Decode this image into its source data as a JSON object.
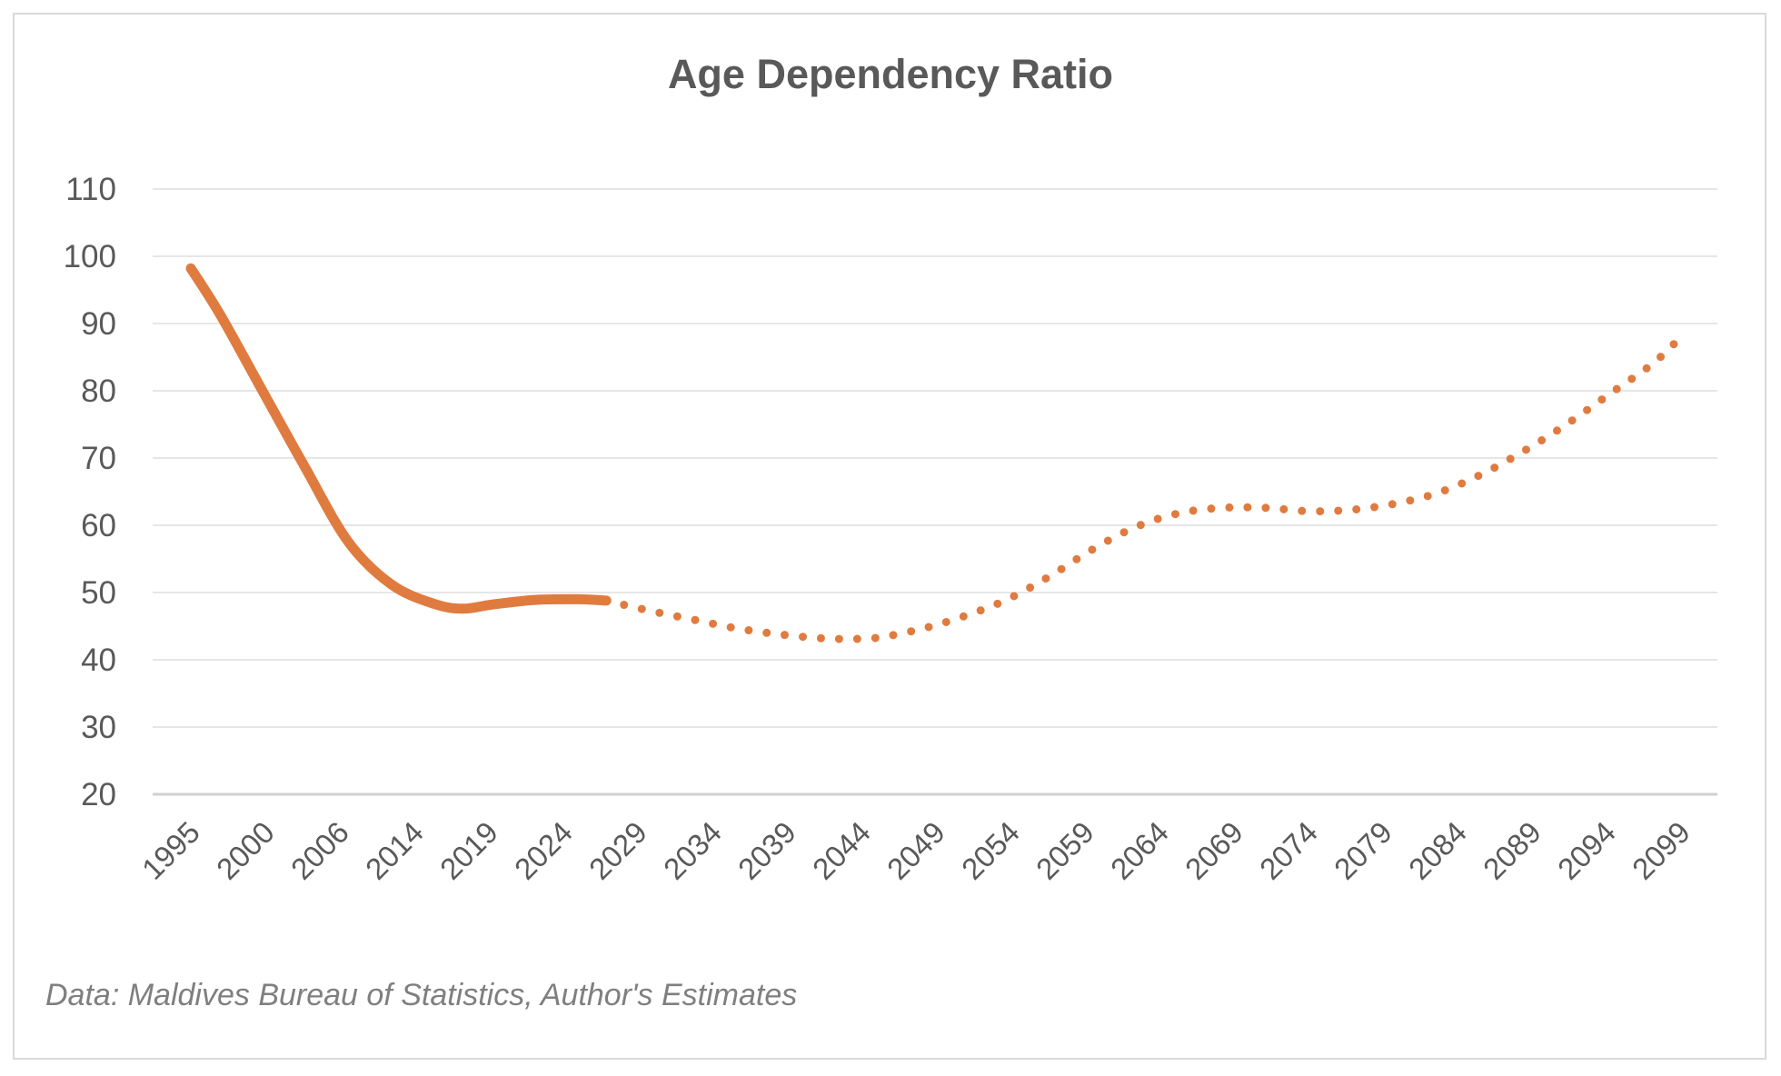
{
  "chart_data": {
    "type": "line",
    "title": "Age Dependency Ratio",
    "xlabel": "",
    "ylabel": "",
    "ylim": [
      20,
      110
    ],
    "yticks": [
      20,
      30,
      40,
      50,
      60,
      70,
      80,
      90,
      100,
      110
    ],
    "xlim": [
      1995,
      2099
    ],
    "xticks": [
      "1995",
      "2000",
      "2006",
      "2014",
      "2019",
      "2024",
      "2029",
      "2034",
      "2039",
      "2044",
      "2049",
      "2054",
      "2059",
      "2064",
      "2069",
      "2074",
      "2079",
      "2084",
      "2089",
      "2094",
      "2099"
    ],
    "grid": true,
    "legend": "none",
    "color": "#E07B3F",
    "series": [
      {
        "style": "solid",
        "x": [
          1995,
          1997,
          2000,
          2003,
          2006,
          2009,
          2012,
          2014,
          2016,
          2019,
          2022,
          2024
        ],
        "y": [
          98.2,
          91.5,
          80.0,
          68.5,
          57.5,
          51.2,
          48.3,
          47.6,
          48.2,
          48.9,
          49.0,
          48.8
        ]
      },
      {
        "style": "dotted",
        "x": [
          2024,
          2027,
          2030,
          2033,
          2036,
          2039,
          2041,
          2043,
          2046,
          2049,
          2052,
          2055,
          2058,
          2061,
          2064,
          2067,
          2070,
          2073,
          2076,
          2079,
          2082,
          2085,
          2088,
          2091,
          2094,
          2097,
          2099
        ],
        "y": [
          48.8,
          47.3,
          46.0,
          44.7,
          43.8,
          43.2,
          43.1,
          43.3,
          44.6,
          46.5,
          49.0,
          52.5,
          56.5,
          59.8,
          61.8,
          62.6,
          62.6,
          62.1,
          62.3,
          63.2,
          64.8,
          67.5,
          71.0,
          75.0,
          79.5,
          84.0,
          88.0
        ]
      }
    ]
  },
  "source_note": "Data: Maldives Bureau of Statistics, Author's Estimates"
}
